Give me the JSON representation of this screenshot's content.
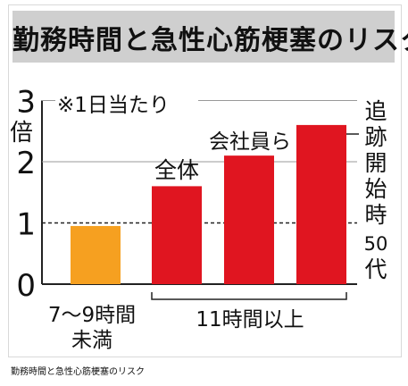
{
  "caption": "勤務時間と急性心筋梗塞のリスク",
  "chart_data": {
    "type": "bar",
    "title": "勤務時間と急性心筋梗塞のリスク",
    "ylabel": "倍",
    "ylim": [
      0,
      3
    ],
    "yticks": [
      "0",
      "1",
      "2",
      "3"
    ],
    "unit_note": "※1日当たり",
    "reference_line": 1,
    "categories": [
      "7～9時間未満",
      "全体",
      "会社員ら",
      "追跡開始時50代"
    ],
    "values": [
      0.95,
      1.6,
      2.1,
      2.6
    ],
    "category_labels": [
      [
        "7～9時間",
        "未満"
      ],
      [
        "全体"
      ],
      [
        "会社員ら"
      ],
      [
        "追",
        "跡",
        "開",
        "始",
        "時",
        "50",
        "代"
      ]
    ],
    "group_label": "11時間以上",
    "colors": {
      "reference": "#f6a020",
      "long_hours": "#e01520",
      "grid": "#999999"
    }
  }
}
